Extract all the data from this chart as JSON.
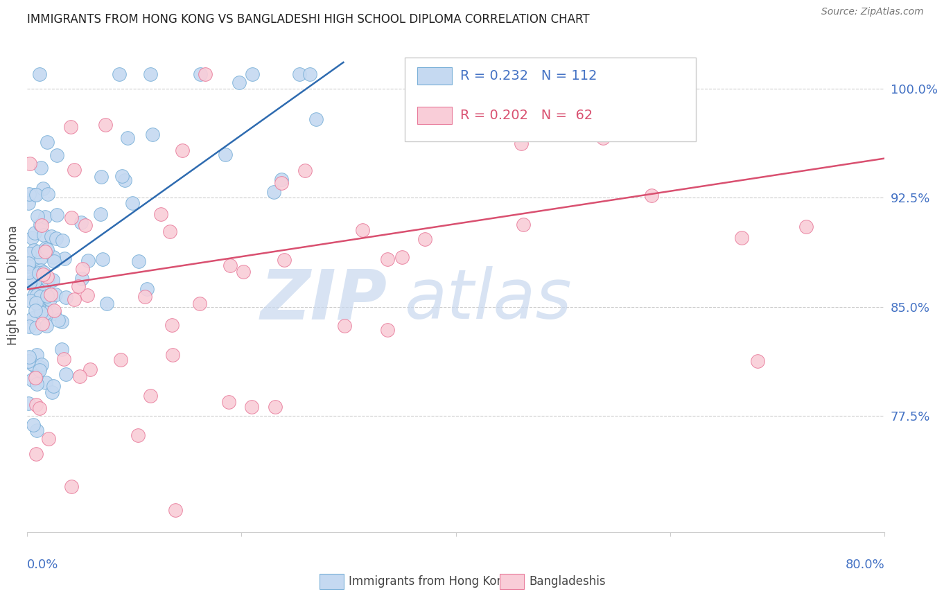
{
  "title": "IMMIGRANTS FROM HONG KONG VS BANGLADESHI HIGH SCHOOL DIPLOMA CORRELATION CHART",
  "source": "Source: ZipAtlas.com",
  "ylabel": "High School Diploma",
  "yticks": [
    0.775,
    0.85,
    0.925,
    1.0
  ],
  "ytick_labels": [
    "77.5%",
    "85.0%",
    "92.5%",
    "100.0%"
  ],
  "xmin": 0.0,
  "xmax": 0.8,
  "ymin": 0.695,
  "ymax": 1.035,
  "series1_label": "Immigrants from Hong Kong",
  "series1_fill_color": "#c5d9f1",
  "series1_edge_color": "#7ab0d8",
  "series1_line_color": "#2e6bb0",
  "series1_R": 0.232,
  "series1_N": 112,
  "series2_label": "Bangladeshis",
  "series2_fill_color": "#f9cdd8",
  "series2_edge_color": "#e87a9a",
  "series2_line_color": "#d95070",
  "series2_R": 0.202,
  "series2_N": 62,
  "watermark_zip": "ZIP",
  "watermark_atlas": "atlas",
  "watermark_color": "#dce8f5",
  "blue_trend_x0": 0.0,
  "blue_trend_y0": 0.863,
  "blue_trend_x1": 0.295,
  "blue_trend_y1": 1.018,
  "pink_trend_x0": 0.0,
  "pink_trend_x1": 0.8,
  "pink_trend_y0": 0.862,
  "pink_trend_y1": 0.952,
  "grid_color": "#cccccc",
  "spine_color": "#cccccc",
  "tick_label_color": "#4472c4",
  "title_color": "#222222",
  "source_color": "#777777",
  "ylabel_color": "#444444"
}
